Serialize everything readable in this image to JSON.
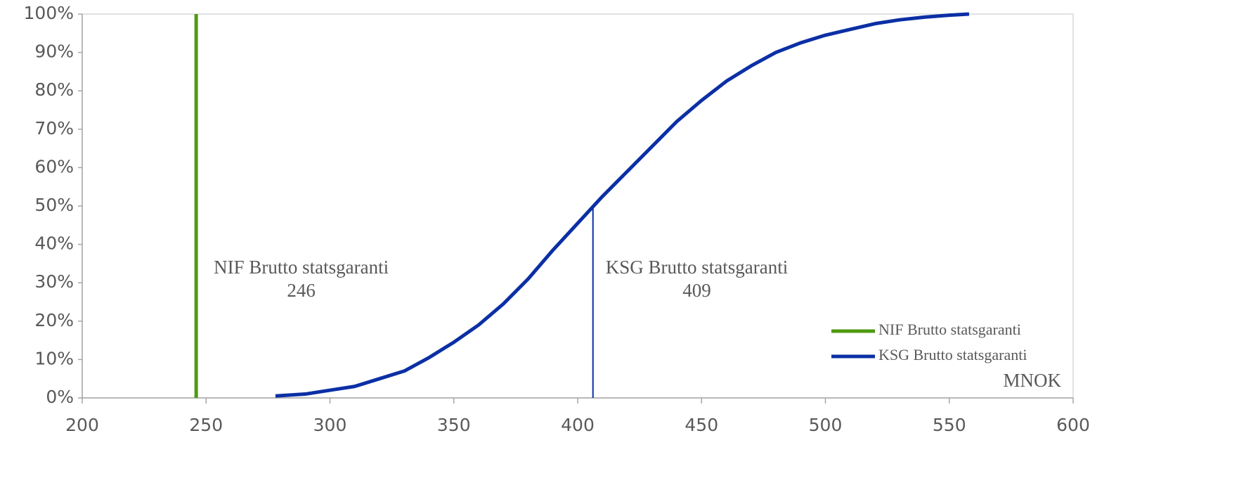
{
  "chart_data": {
    "type": "line",
    "x_label": "MNOK",
    "xlim": [
      200,
      600
    ],
    "xticks": [
      200,
      250,
      300,
      350,
      400,
      450,
      500,
      550,
      600
    ],
    "ylim": [
      0,
      100
    ],
    "yticks": [
      {
        "value": 0,
        "label": "0%"
      },
      {
        "value": 10,
        "label": "10%"
      },
      {
        "value": 20,
        "label": "20%"
      },
      {
        "value": 30,
        "label": "30%"
      },
      {
        "value": 40,
        "label": "40%"
      },
      {
        "value": 50,
        "label": "50%"
      },
      {
        "value": 60,
        "label": "60%"
      },
      {
        "value": 70,
        "label": "70%"
      },
      {
        "value": 80,
        "label": "80%"
      },
      {
        "value": 90,
        "label": "90%"
      },
      {
        "value": 100,
        "label": "100%"
      }
    ],
    "legend": "lower right",
    "series": [
      {
        "name": "NIF Brutto statsgaranti",
        "color": "#4f9a12",
        "x": [
          246,
          246
        ],
        "values": [
          0,
          100
        ]
      },
      {
        "name": "KSG Brutto statsgaranti",
        "color": "#0b2fa5",
        "x": [
          278,
          290,
          300,
          310,
          320,
          330,
          340,
          350,
          360,
          370,
          380,
          390,
          400,
          410,
          420,
          430,
          440,
          450,
          460,
          470,
          480,
          490,
          500,
          510,
          520,
          530,
          540,
          550,
          558
        ],
        "values": [
          0.5,
          1,
          2,
          3,
          5,
          7,
          10.5,
          14.5,
          19,
          24.5,
          31,
          38.5,
          45.5,
          52.5,
          59,
          65.5,
          72,
          77.5,
          82.5,
          86.5,
          90,
          92.5,
          94.5,
          96,
          97.5,
          98.5,
          99.2,
          99.7,
          100
        ]
      }
    ],
    "annotations": [
      {
        "text": "NIF Brutto statsgaranti",
        "value": 246
      },
      {
        "text": "KSG Brutto statsgaranti",
        "value": 409
      }
    ]
  }
}
